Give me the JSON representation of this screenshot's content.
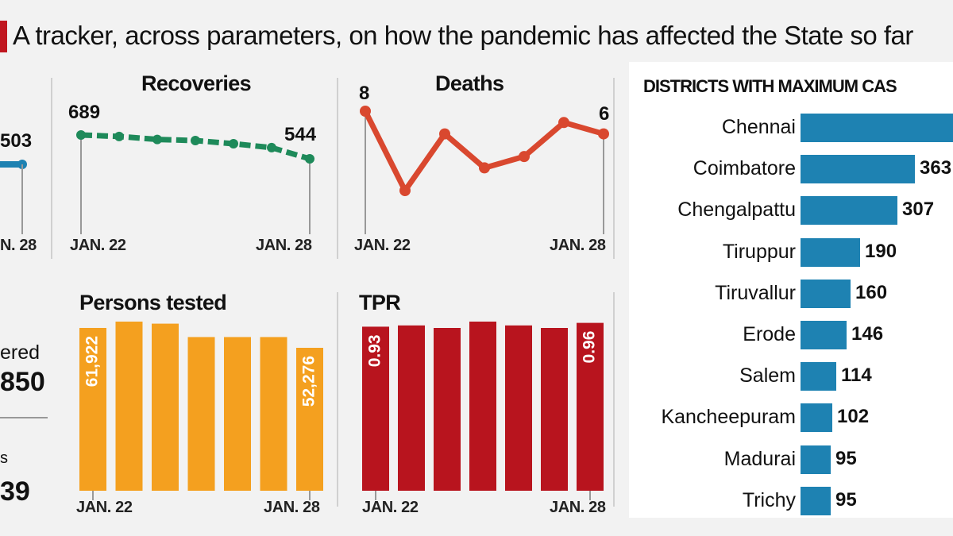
{
  "headline": "A tracker, across parameters, on how the pandemic has affected the State so far",
  "left_fragments": {
    "partial_value": "503",
    "partial_xlabel": "N. 28",
    "partial_word": "ered",
    "partial_total": "850",
    "partial_letter": "s",
    "partial_number": "39"
  },
  "colors": {
    "teal": "#1e82b2",
    "green": "#1e8a5a",
    "orange_red": "#d9482f",
    "orange": "#f4a01f",
    "crimson": "#b8141e",
    "accent_red": "#c0161f"
  },
  "chart_data": [
    {
      "type": "line",
      "title": "Recoveries",
      "x": [
        "JAN. 22",
        "",
        "",
        "",
        "",
        "",
        "JAN. 28"
      ],
      "values": [
        689,
        680,
        662,
        655,
        636,
        612,
        544
      ],
      "labels_shown": {
        "first": "689",
        "last": "544"
      },
      "xticks": [
        "JAN. 22",
        "JAN. 28"
      ],
      "color": "#1e8a5a"
    },
    {
      "type": "line",
      "title": "Deaths",
      "x": [
        "JAN. 22",
        "",
        "",
        "",
        "",
        "",
        "JAN. 28"
      ],
      "values": [
        8,
        1,
        6,
        3,
        4,
        7,
        6
      ],
      "labels_shown": {
        "first": "8",
        "last": "6"
      },
      "xticks": [
        "JAN. 22",
        "JAN. 28"
      ],
      "color": "#d9482f"
    },
    {
      "type": "bar",
      "title": "Persons tested",
      "x": [
        "JAN. 22",
        "",
        "",
        "",
        "",
        "",
        "JAN. 28"
      ],
      "values": [
        61922,
        65000,
        64000,
        57500,
        57500,
        57500,
        52276
      ],
      "labels_shown": {
        "first": "61,922",
        "last": "52,276"
      },
      "xticks": [
        "JAN. 22",
        "JAN. 28"
      ],
      "color": "#f4a01f"
    },
    {
      "type": "bar",
      "title": "TPR",
      "x": [
        "JAN. 22",
        "",
        "",
        "",
        "",
        "",
        "JAN. 28"
      ],
      "values": [
        0.93,
        0.94,
        0.92,
        0.97,
        0.94,
        0.92,
        0.96
      ],
      "labels_shown": {
        "first": "0.93",
        "last": "0.96"
      },
      "xticks": [
        "JAN. 22",
        "JAN. 28"
      ],
      "color": "#b8141e"
    },
    {
      "type": "bar",
      "orientation": "horizontal",
      "title": "DISTRICTS WITH MAXIMUM CAS",
      "categories": [
        "Chennai",
        "Coimbatore",
        "Chengalpattu",
        "Tiruppur",
        "Tiruvallur",
        "Erode",
        "Salem",
        "Kancheepuram",
        "Madurai",
        "Trichy"
      ],
      "values": [
        null,
        363,
        307,
        190,
        160,
        146,
        114,
        102,
        95,
        95
      ],
      "value_labels": [
        "",
        "363",
        "307",
        "190",
        "160",
        "146",
        "114",
        "102",
        "95",
        "95"
      ],
      "color": "#1e82b2"
    }
  ]
}
